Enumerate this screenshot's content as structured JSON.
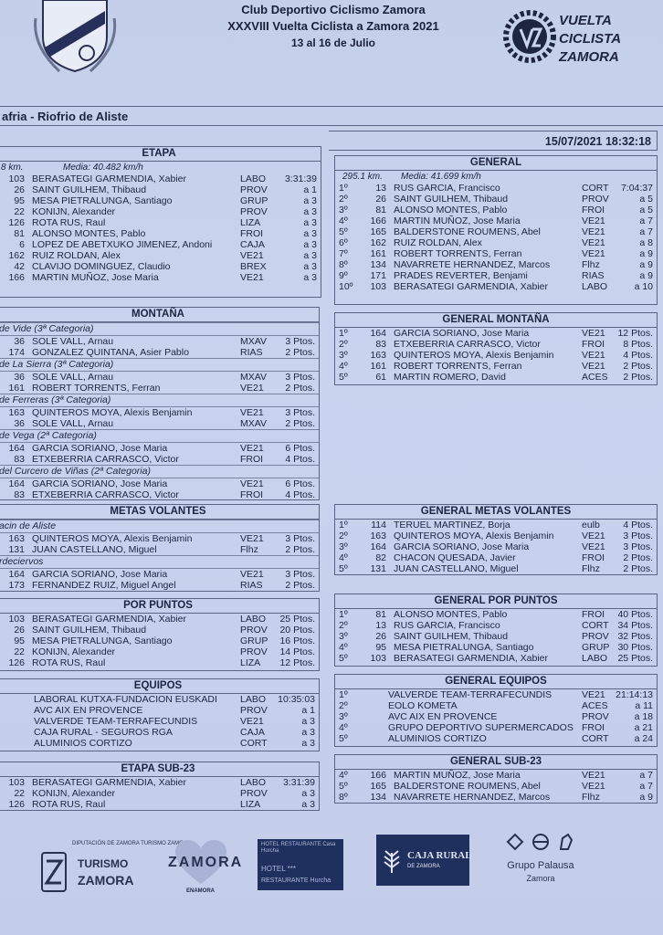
{
  "header": {
    "line1": "Club Deportivo Ciclismo Zamora",
    "line2": "XXXVIII Vuelta Ciclista a  Zamora 2021",
    "line3": "13 al 16 de Julio",
    "logo_text": "VUELTA CICLISTA ZAMORA"
  },
  "stage_title": "afria - Riofrio de Aliste",
  "timestamp": "15/07/2021 18:32:18",
  "colors": {
    "paper": "#c9d3ee",
    "ink": "#1d2540",
    "border": "#5a6585",
    "sponsor_navy": "#1f2f5e"
  },
  "sections": {
    "etapa": {
      "title": "ETAPA",
      "km": "8 km.",
      "media": "Media: 40.482 km/h",
      "rows": [
        {
          "dorsal": "103",
          "name": "BERASATEGI GARMENDIA, Xabier",
          "team": "LABO",
          "result": "3:31:39"
        },
        {
          "dorsal": "26",
          "name": "SAINT GUILHEM, Thibaud",
          "team": "PROV",
          "result": "a  1"
        },
        {
          "dorsal": "95",
          "name": "MESA PIETRALUNGA, Santiago",
          "team": "GRUP",
          "result": "a  3"
        },
        {
          "dorsal": "22",
          "name": "KONIJN, Alexander",
          "team": "PROV",
          "result": "a  3"
        },
        {
          "dorsal": "126",
          "name": "ROTA RUS, Raul",
          "team": "LIZA",
          "result": "a  3"
        },
        {
          "dorsal": "81",
          "name": "ALONSO MONTES, Pablo",
          "team": "FROI",
          "result": "a  3"
        },
        {
          "dorsal": "6",
          "name": "LOPEZ DE ABETXUKO JIMENEZ, Andoni",
          "team": "CAJA",
          "result": "a  3"
        },
        {
          "dorsal": "162",
          "name": "RUIZ ROLDAN, Alex",
          "team": "VE21",
          "result": "a  3"
        },
        {
          "dorsal": "42",
          "name": "CLAVIJO DOMINGUEZ, Claudio",
          "team": "BREX",
          "result": "a  3"
        },
        {
          "dorsal": "166",
          "name": "MARTIN MUÑOZ, Jose Maria",
          "team": "VE21",
          "result": "a  3"
        }
      ]
    },
    "general": {
      "title": "GENERAL",
      "km": "295.1 km.",
      "media": "Media: 41.699 km/h",
      "rows": [
        {
          "pos": "1º",
          "dorsal": "13",
          "name": "RUS GARCIA, Francisco",
          "team": "CORT",
          "result": "7:04:37"
        },
        {
          "pos": "2º",
          "dorsal": "26",
          "name": "SAINT GUILHEM, Thibaud",
          "team": "PROV",
          "result": "a  5"
        },
        {
          "pos": "3º",
          "dorsal": "81",
          "name": "ALONSO MONTES, Pablo",
          "team": "FROI",
          "result": "a  5"
        },
        {
          "pos": "4º",
          "dorsal": "166",
          "name": "MARTIN MUÑOZ, Jose Maria",
          "team": "VE21",
          "result": "a  7"
        },
        {
          "pos": "5º",
          "dorsal": "165",
          "name": "BALDERSTONE ROUMENS, Abel",
          "team": "VE21",
          "result": "a  7"
        },
        {
          "pos": "6º",
          "dorsal": "162",
          "name": "RUIZ ROLDAN, Alex",
          "team": "VE21",
          "result": "a  8"
        },
        {
          "pos": "7º",
          "dorsal": "161",
          "name": "ROBERT TORRENTS, Ferran",
          "team": "VE21",
          "result": "a  9"
        },
        {
          "pos": "8º",
          "dorsal": "134",
          "name": "NAVARRETE HERNANDEZ, Marcos",
          "team": "Flhz",
          "result": "a  9"
        },
        {
          "pos": "9º",
          "dorsal": "171",
          "name": "PRADES REVERTER, Benjami",
          "team": "RIAS",
          "result": "a  9"
        },
        {
          "pos": "10º",
          "dorsal": "103",
          "name": "BERASATEGI GARMENDIA, Xabier",
          "team": "LABO",
          "result": "a  10"
        }
      ]
    },
    "montana": {
      "title": "MONTAÑA",
      "groups": [
        {
          "label": "de Vide  (3ª Categoria)",
          "rows": [
            {
              "dorsal": "36",
              "name": "SOLE VALL, Arnau",
              "team": "MXAV",
              "result": "3 Ptos."
            },
            {
              "dorsal": "174",
              "name": "GONZALEZ QUINTANA, Asier Pablo",
              "team": "RIAS",
              "result": "2 Ptos."
            }
          ]
        },
        {
          "label": "de La Sierra  (3ª Categoria)",
          "rows": [
            {
              "dorsal": "36",
              "name": "SOLE VALL, Arnau",
              "team": "MXAV",
              "result": "3 Ptos."
            },
            {
              "dorsal": "161",
              "name": "ROBERT TORRENTS, Ferran",
              "team": "VE21",
              "result": "2 Ptos."
            }
          ]
        },
        {
          "label": "de Ferreras  (3ª Categoria)",
          "rows": [
            {
              "dorsal": "163",
              "name": "QUINTEROS MOYA, Alexis Benjamin",
              "team": "VE21",
              "result": "3 Ptos."
            },
            {
              "dorsal": "36",
              "name": "SOLE VALL, Arnau",
              "team": "MXAV",
              "result": "2 Ptos."
            }
          ]
        },
        {
          "label": "de Vega  (2ª Categoria)",
          "rows": [
            {
              "dorsal": "164",
              "name": "GARCIA SORIANO, Jose Maria",
              "team": "VE21",
              "result": "6 Ptos."
            },
            {
              "dorsal": "83",
              "name": "ETXEBERRIA CARRASCO, Victor",
              "team": "FROI",
              "result": "4 Ptos."
            }
          ]
        },
        {
          "label": "del Curcero de Viñas  (2ª Categoria)",
          "rows": [
            {
              "dorsal": "164",
              "name": "GARCIA SORIANO, Jose Maria",
              "team": "VE21",
              "result": "6 Ptos."
            },
            {
              "dorsal": "83",
              "name": "ETXEBERRIA CARRASCO, Victor",
              "team": "FROI",
              "result": "4 Ptos."
            }
          ]
        }
      ]
    },
    "general_montana": {
      "title": "GENERAL MONTAÑA",
      "rows": [
        {
          "pos": "1º",
          "dorsal": "164",
          "name": "GARCIA SORIANO, Jose Maria",
          "team": "VE21",
          "result": "12 Ptos."
        },
        {
          "pos": "2º",
          "dorsal": "83",
          "name": "ETXEBERRIA CARRASCO, Victor",
          "team": "FROI",
          "result": "8 Ptos."
        },
        {
          "pos": "3º",
          "dorsal": "163",
          "name": "QUINTEROS MOYA, Alexis Benjamin",
          "team": "VE21",
          "result": "4 Ptos."
        },
        {
          "pos": "4º",
          "dorsal": "161",
          "name": "ROBERT TORRENTS, Ferran",
          "team": "VE21",
          "result": "2 Ptos."
        },
        {
          "pos": "5º",
          "dorsal": "61",
          "name": "MARTIN ROMERO, David",
          "team": "ACES",
          "result": "2 Ptos."
        }
      ]
    },
    "metas_volantes": {
      "title": "METAS VOLANTES",
      "groups": [
        {
          "label": "acin de Aliste",
          "rows": [
            {
              "dorsal": "163",
              "name": "QUINTEROS MOYA, Alexis Benjamin",
              "team": "VE21",
              "result": "3 Ptos."
            },
            {
              "dorsal": "131",
              "name": "JUAN CASTELLANO, Miguel",
              "team": "Flhz",
              "result": "2 Ptos."
            }
          ]
        },
        {
          "label": "rdeciervos",
          "rows": [
            {
              "dorsal": "164",
              "name": "GARCIA SORIANO, Jose Maria",
              "team": "VE21",
              "result": "3 Ptos."
            },
            {
              "dorsal": "173",
              "name": "FERNANDEZ RUIZ, Miguel Angel",
              "team": "RIAS",
              "result": "2 Ptos."
            }
          ]
        }
      ]
    },
    "general_metas_volantes": {
      "title": "GENERAL METAS VOLANTES",
      "rows": [
        {
          "pos": "1º",
          "dorsal": "114",
          "name": "TERUEL MARTINEZ, Borja",
          "team": "eulb",
          "result": "4 Ptos."
        },
        {
          "pos": "2º",
          "dorsal": "163",
          "name": "QUINTEROS MOYA, Alexis Benjamin",
          "team": "VE21",
          "result": "3 Ptos."
        },
        {
          "pos": "3º",
          "dorsal": "164",
          "name": "GARCIA SORIANO, Jose Maria",
          "team": "VE21",
          "result": "3 Ptos."
        },
        {
          "pos": "4º",
          "dorsal": "82",
          "name": "CHACON QUESADA, Javier",
          "team": "FROI",
          "result": "2 Ptos."
        },
        {
          "pos": "5º",
          "dorsal": "131",
          "name": "JUAN CASTELLANO, Miguel",
          "team": "Flhz",
          "result": "2 Ptos."
        }
      ]
    },
    "por_puntos": {
      "title": "POR PUNTOS",
      "rows": [
        {
          "dorsal": "103",
          "name": "BERASATEGI GARMENDIA, Xabier",
          "team": "LABO",
          "result": "25 Ptos."
        },
        {
          "dorsal": "26",
          "name": "SAINT GUILHEM, Thibaud",
          "team": "PROV",
          "result": "20 Ptos."
        },
        {
          "dorsal": "95",
          "name": "MESA PIETRALUNGA, Santiago",
          "team": "GRUP",
          "result": "16 Ptos."
        },
        {
          "dorsal": "22",
          "name": "KONIJN, Alexander",
          "team": "PROV",
          "result": "14 Ptos."
        },
        {
          "dorsal": "126",
          "name": "ROTA RUS, Raul",
          "team": "LIZA",
          "result": "12 Ptos."
        }
      ]
    },
    "general_por_puntos": {
      "title": "GENERAL POR PUNTOS",
      "rows": [
        {
          "pos": "1º",
          "dorsal": "81",
          "name": "ALONSO MONTES, Pablo",
          "team": "FROI",
          "result": "40 Ptos."
        },
        {
          "pos": "2º",
          "dorsal": "13",
          "name": "RUS GARCIA, Francisco",
          "team": "CORT",
          "result": "34 Ptos."
        },
        {
          "pos": "3º",
          "dorsal": "26",
          "name": "SAINT GUILHEM, Thibaud",
          "team": "PROV",
          "result": "32 Ptos."
        },
        {
          "pos": "4º",
          "dorsal": "95",
          "name": "MESA PIETRALUNGA, Santiago",
          "team": "GRUP",
          "result": "30 Ptos."
        },
        {
          "pos": "5º",
          "dorsal": "103",
          "name": "BERASATEGI GARMENDIA, Xabier",
          "team": "LABO",
          "result": "25 Ptos."
        }
      ]
    },
    "equipos": {
      "title": "EQUIPOS",
      "rows": [
        {
          "name": "LABORAL KUTXA-FUNDACION EUSKADI",
          "team": "LABO",
          "result": "10:35:03"
        },
        {
          "name": "AVC AIX EN PROVENCE",
          "team": "PROV",
          "result": "a  1"
        },
        {
          "name": "VALVERDE TEAM-TERRAFECUNDIS",
          "team": "VE21",
          "result": "a  3"
        },
        {
          "name": "CAJA RURAL - SEGUROS RGA",
          "team": "CAJA",
          "result": "a  3"
        },
        {
          "name": "ALUMINIOS CORTIZO",
          "team": "CORT",
          "result": "a  3"
        }
      ]
    },
    "general_equipos": {
      "title": "GENERAL EQUIPOS",
      "rows": [
        {
          "pos": "1º",
          "name": "VALVERDE TEAM-TERRAFECUNDIS",
          "team": "VE21",
          "result": "21:14:13"
        },
        {
          "pos": "2º",
          "name": "EOLO KOMETA",
          "team": "ACES",
          "result": "a  11"
        },
        {
          "pos": "3º",
          "name": "AVC AIX EN PROVENCE",
          "team": "PROV",
          "result": "a  18"
        },
        {
          "pos": "4º",
          "name": "GRUPO DEPORTIVO SUPERMERCADOS",
          "team": "FROI",
          "result": "a  21"
        },
        {
          "pos": "5º",
          "name": "ALUMINIOS CORTIZO",
          "team": "CORT",
          "result": "a  24"
        }
      ]
    },
    "etapa_sub23": {
      "title": "ETAPA SUB-23",
      "rows": [
        {
          "dorsal": "103",
          "name": "BERASATEGI GARMENDIA, Xabier",
          "team": "LABO",
          "result": "3:31:39"
        },
        {
          "dorsal": "22",
          "name": "KONIJN, Alexander",
          "team": "PROV",
          "result": "a  3"
        },
        {
          "dorsal": "126",
          "name": "ROTA RUS, Raul",
          "team": "LIZA",
          "result": "a  3"
        }
      ]
    },
    "general_sub23": {
      "title": "GENERAL SUB-23",
      "rows": [
        {
          "pos": "4º",
          "dorsal": "166",
          "name": "MARTIN MUÑOZ, Jose Maria",
          "team": "VE21",
          "result": "a  7"
        },
        {
          "pos": "5º",
          "dorsal": "165",
          "name": "BALDERSTONE ROUMENS, Abel",
          "team": "VE21",
          "result": "a  7"
        },
        {
          "pos": "8º",
          "dorsal": "134",
          "name": "NAVARRETE HERNANDEZ, Marcos",
          "team": "Flhz",
          "result": "a  9"
        }
      ]
    }
  },
  "sponsors": [
    {
      "name": "DIPUTACIÓN DE ZAMORA TURISMO ZAMORA",
      "line1": "TURISMO",
      "line2": "ZAMORA"
    },
    {
      "name": "ZAMORA ENAMORA",
      "line1": "ZAMORA",
      "line2": "ENAMORA"
    },
    {
      "name": "HOTEL RESTAURANTE Casa Hurcha",
      "line1": "HOTEL ***",
      "line2": "RESTAURANTE Hurcha"
    },
    {
      "name": "CAJA RURAL DE ZAMORA",
      "line1": "CAJA RURAL",
      "line2": "DE ZAMORA"
    },
    {
      "name": "Grupo Palausa Zamora",
      "line1": "Grupo Palausa",
      "line2": "Zamora"
    }
  ]
}
